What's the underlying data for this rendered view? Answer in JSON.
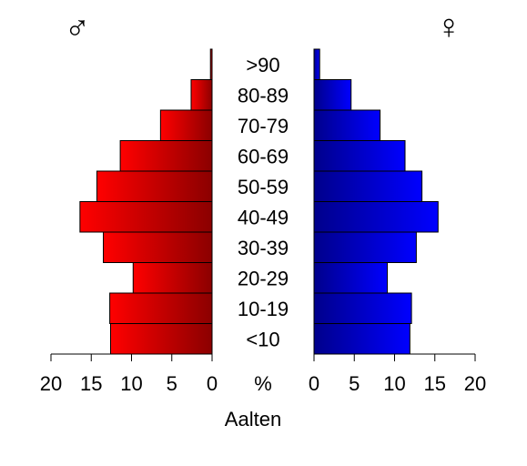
{
  "chart_data": {
    "type": "bar",
    "title": "Aalten",
    "center_unit": "%",
    "categories": [
      "<10",
      "10-19",
      "20-29",
      "30-39",
      "40-49",
      "50-59",
      "60-69",
      "70-79",
      "80-89",
      ">90"
    ],
    "series": [
      {
        "name": "♂",
        "side": "left",
        "values": [
          12.6,
          12.7,
          9.8,
          13.5,
          16.4,
          14.3,
          11.4,
          6.4,
          2.6,
          0.2
        ]
      },
      {
        "name": "♀",
        "side": "right",
        "values": [
          11.9,
          12.1,
          9.1,
          12.7,
          15.4,
          13.4,
          11.3,
          8.2,
          4.6,
          0.7
        ]
      }
    ],
    "x_ticks": [
      20,
      15,
      10,
      5,
      0
    ],
    "xlim": [
      0,
      20
    ],
    "grid": false,
    "colors": {
      "male_light": "#ff0000",
      "male_dark": "#8b0000",
      "female_light": "#0000ff",
      "female_dark": "#00008b"
    }
  }
}
